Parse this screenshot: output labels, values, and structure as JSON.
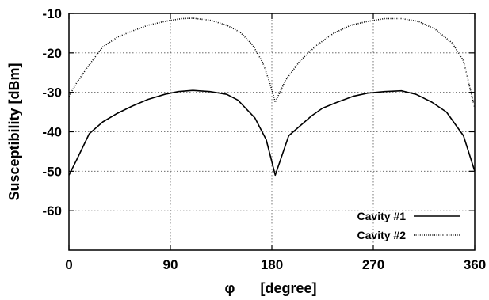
{
  "chart_data": {
    "type": "line",
    "title": "",
    "xlabel_symbol": "φ",
    "xlabel_unit": "[degree]",
    "ylabel": "Susceptibility [dBm]",
    "xlim": [
      0,
      360
    ],
    "ylim": [
      -70,
      -10
    ],
    "xticks": [
      0,
      90,
      180,
      270,
      360
    ],
    "yticks": [
      -60,
      -50,
      -40,
      -30,
      -20,
      -10
    ],
    "grid": true,
    "legend_position": "bottom-right",
    "series": [
      {
        "name": "Cavity #1",
        "style": "solid",
        "color": "#000000",
        "x": [
          0,
          7,
          18,
          30,
          43,
          56,
          70,
          85,
          97,
          110,
          125,
          140,
          150,
          165,
          175,
          183,
          195,
          205,
          215,
          225,
          238,
          252,
          265,
          280,
          295,
          308,
          322,
          335,
          350,
          360
        ],
        "y": [
          -51,
          -47,
          -40.5,
          -37.5,
          -35.3,
          -33.5,
          -31.8,
          -30.5,
          -29.8,
          -29.5,
          -29.8,
          -30.5,
          -32,
          -36.5,
          -42,
          -51,
          -41,
          -38.5,
          -36,
          -34,
          -32.5,
          -31,
          -30.2,
          -29.8,
          -29.6,
          -30.5,
          -32.5,
          -35,
          -41,
          -50
        ]
      },
      {
        "name": "Cavity #2",
        "style": "dotted",
        "color": "#000000",
        "x": [
          0,
          7,
          18,
          30,
          43,
          56,
          70,
          85,
          100,
          110,
          125,
          140,
          152,
          163,
          172,
          178,
          183,
          192,
          205,
          220,
          235,
          250,
          265,
          280,
          295,
          310,
          325,
          340,
          350,
          360
        ],
        "y": [
          -31,
          -27.5,
          -23,
          -18.5,
          -16,
          -14.5,
          -13,
          -12,
          -11.3,
          -11.2,
          -11.7,
          -13,
          -14.8,
          -18,
          -22.5,
          -27.5,
          -32.5,
          -27,
          -22,
          -18,
          -15,
          -13,
          -12,
          -11.3,
          -11.3,
          -12,
          -14,
          -17.5,
          -22,
          -34
        ]
      }
    ]
  }
}
